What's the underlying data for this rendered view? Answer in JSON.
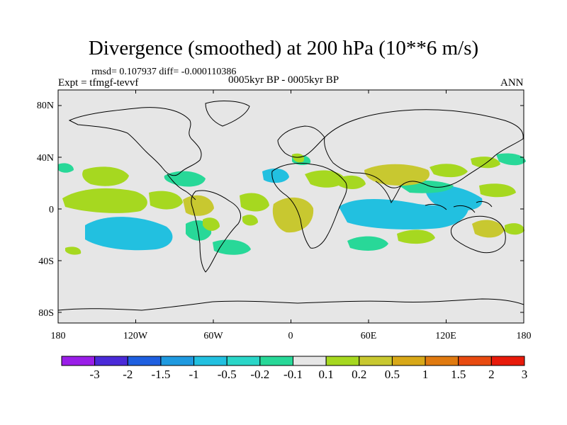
{
  "title": "Divergence (smoothed) at 200 hPa (10**6 m/s)",
  "stats": "rmsd= 0.107937 diff= -0.000110386",
  "expt": "Expt = tfmgf-tevvf",
  "period": "0005kyr BP - 0005kyr BP",
  "season": "ANN",
  "lat_labels": [
    "80N",
    "40N",
    "0",
    "40S",
    "80S"
  ],
  "lon_labels": [
    "180",
    "120W",
    "60W",
    "0",
    "60E",
    "120E",
    "180"
  ],
  "colorbar": {
    "labels": [
      "-3",
      "-2",
      "-1.5",
      "-1",
      "-0.5",
      "-0.2",
      "-0.1",
      "0.1",
      "0.2",
      "0.5",
      "1",
      "1.5",
      "2",
      "3"
    ],
    "colors": [
      "#9a1ee8",
      "#4a2ad8",
      "#1e5fe0",
      "#1f9ae0",
      "#22c0e0",
      "#2ad6c8",
      "#28d898",
      "#e6e6e6",
      "#a6d820",
      "#c8c830",
      "#d8a818",
      "#e07a10",
      "#e84a10",
      "#e81a0a"
    ]
  },
  "map": {
    "background": "#e6e6e6",
    "positive_light": "#a6d820",
    "positive_mid": "#c8c830",
    "negative_light": "#28d898",
    "negative_mid": "#22c0e0"
  }
}
